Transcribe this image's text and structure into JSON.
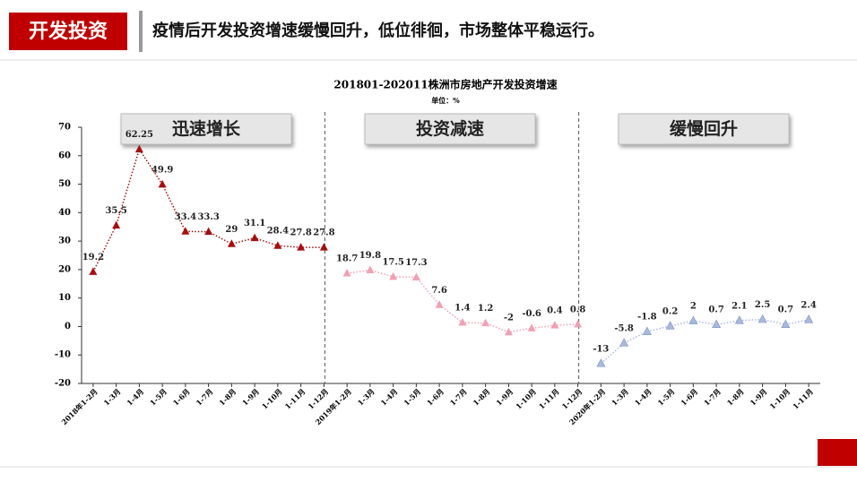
{
  "header": {
    "badge": "开发投资",
    "headline": "疫情后开发投资增速缓慢回升，低位徘徊，市场整体平稳运行。"
  },
  "chart_data": {
    "type": "line",
    "title": "201801-202011株洲市房地产开发投资增速",
    "subtitle": "单位：%",
    "annotations": [
      "迅速增长",
      "投资减速",
      "缓慢回升"
    ],
    "categories": [
      "2018年1-2月",
      "1-3月",
      "1-4月",
      "1-5月",
      "1-6月",
      "1-7月",
      "1-8月",
      "1-9月",
      "1-10月",
      "1-11月",
      "1-12月",
      "2019年1-2月",
      "1-3月",
      "1-4月",
      "1-5月",
      "1-6月",
      "1-7月",
      "1-8月",
      "1-9月",
      "1-10月",
      "1-11月",
      "1-12月",
      "2020年1-2月",
      "1-3月",
      "1-4月",
      "1-5月",
      "1-6月",
      "1-7月",
      "1-8月",
      "1-9月",
      "1-10月",
      "1-11月"
    ],
    "series": [
      {
        "color": "#a50f0f",
        "values": [
          19.2,
          35.5,
          62.25,
          49.9,
          33.4,
          33.3,
          29,
          31.1,
          28.4,
          27.8,
          27.8,
          null,
          null,
          null,
          null,
          null,
          null,
          null,
          null,
          null,
          null,
          null,
          null,
          null,
          null,
          null,
          null,
          null,
          null,
          null,
          null,
          null
        ]
      },
      {
        "color": "#f2a0b4",
        "values": [
          null,
          null,
          null,
          null,
          null,
          null,
          null,
          null,
          null,
          null,
          null,
          18.7,
          19.8,
          17.5,
          17.3,
          7.6,
          1.4,
          1.2,
          -2,
          -0.6,
          0.4,
          0.8,
          null,
          null,
          null,
          null,
          null,
          null,
          null,
          null,
          null,
          null
        ]
      },
      {
        "color": "#a9b9dd",
        "values": [
          null,
          null,
          null,
          null,
          null,
          null,
          null,
          null,
          null,
          null,
          null,
          null,
          null,
          null,
          null,
          null,
          null,
          null,
          null,
          null,
          null,
          null,
          -13,
          -5.8,
          -1.8,
          0.2,
          2,
          0.7,
          2.1,
          2.5,
          0.7,
          2.4
        ]
      }
    ],
    "ylim": [
      -20,
      70
    ],
    "yticks": [
      -20,
      -10,
      0,
      10,
      20,
      30,
      40,
      50,
      60,
      70
    ]
  }
}
